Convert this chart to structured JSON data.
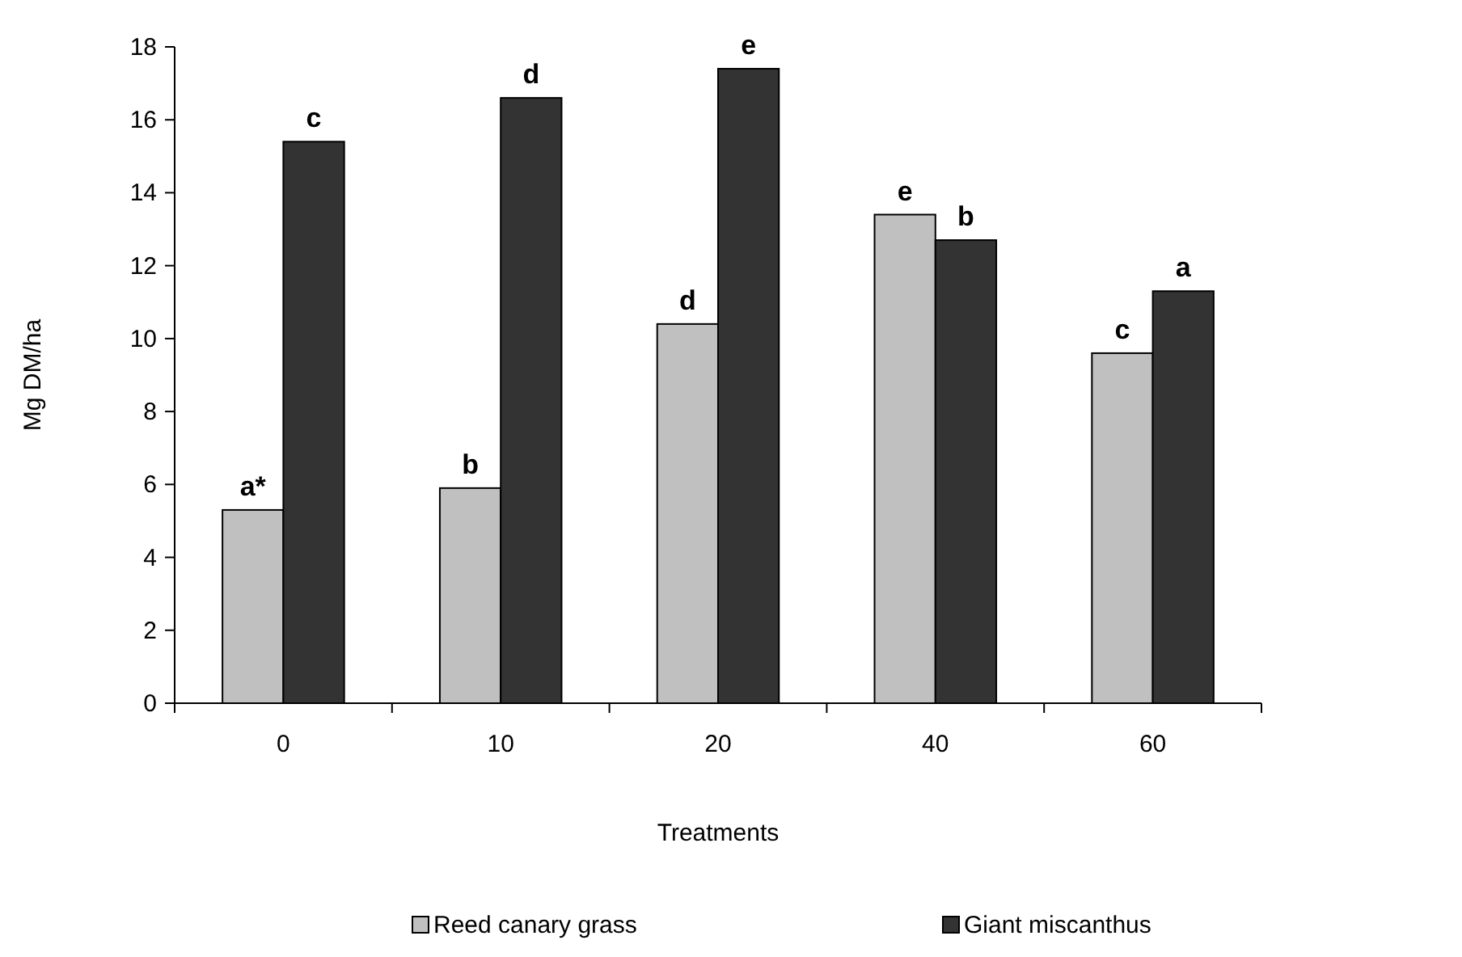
{
  "chart_data": {
    "type": "bar",
    "xlabel": "Treatments",
    "ylabel": "Mg DM/ha",
    "categories": [
      "0",
      "10",
      "20",
      "40",
      "60"
    ],
    "series": [
      {
        "name": "Reed canary grass",
        "color": "#c0c0c0",
        "values": [
          5.3,
          5.9,
          10.4,
          13.4,
          9.6
        ]
      },
      {
        "name": "Giant miscanthus",
        "color": "#333333",
        "values": [
          15.4,
          16.6,
          17.4,
          12.7,
          11.3
        ]
      }
    ],
    "ylim": [
      0,
      18
    ],
    "yticks": [
      0,
      2,
      4,
      6,
      8,
      10,
      12,
      14,
      16,
      18
    ],
    "grid": false,
    "legend": "bottom",
    "annotations": [
      {
        "text": "a*",
        "x": "0",
        "y": 5.3
      },
      {
        "text": "c",
        "x": "0",
        "y": 15.4
      },
      {
        "text": "b",
        "x": "10",
        "y": 5.9
      },
      {
        "text": "d",
        "x": "10",
        "y": 16.6
      },
      {
        "text": "d",
        "x": "20",
        "y": 10.4
      },
      {
        "text": "e",
        "x": "20",
        "y": 17.4
      },
      {
        "text": "e",
        "x": "40",
        "y": 13.4
      },
      {
        "text": "b",
        "x": "40",
        "y": 12.7
      },
      {
        "text": "c",
        "x": "60",
        "y": 9.6
      },
      {
        "text": "a",
        "x": "60",
        "y": 11.3
      }
    ]
  }
}
